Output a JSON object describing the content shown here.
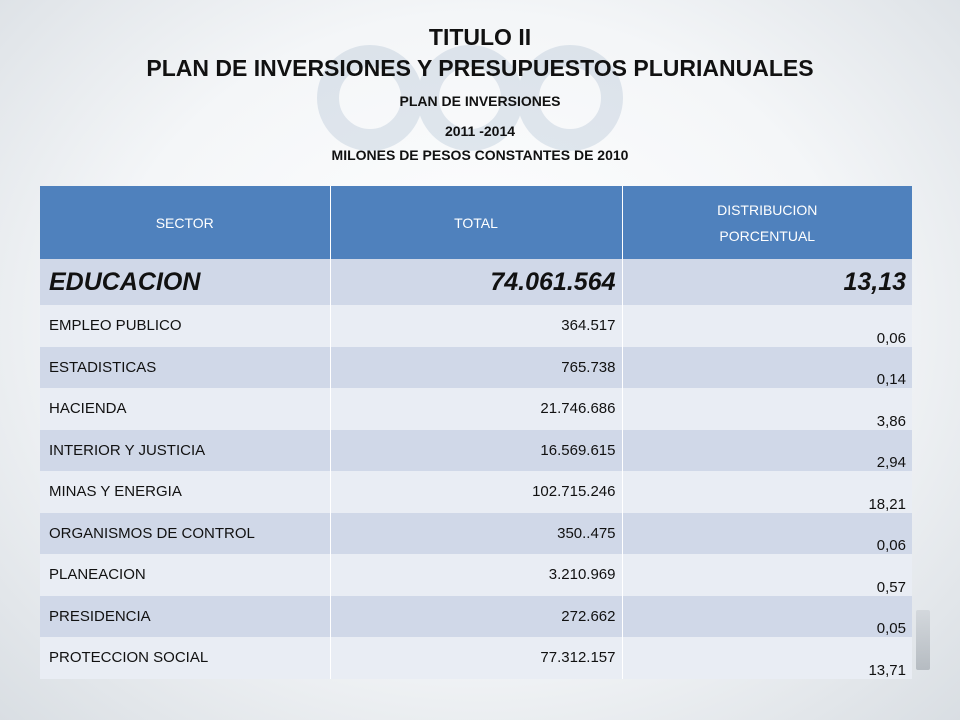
{
  "title": {
    "line1": "TITULO II",
    "line2": "PLAN DE INVERSIONES Y PRESUPUESTOS PLURIANUALES",
    "line3": "PLAN DE INVERSIONES",
    "line4": "2011 -2014",
    "line5": "MILONES DE PESOS CONSTANTES DE 2010"
  },
  "table": {
    "headers": {
      "sector": "SECTOR",
      "total": "TOTAL",
      "distribucion_line1": "DISTRIBUCION",
      "distribucion_line2": "PORCENTUAL"
    },
    "rows": [
      {
        "sector": "EDUCACION",
        "total": "74.061.564",
        "pct": "13,13"
      },
      {
        "sector": "EMPLEO PUBLICO",
        "total": "364.517",
        "pct": "0,06"
      },
      {
        "sector": "ESTADISTICAS",
        "total": "765.738",
        "pct": "0,14"
      },
      {
        "sector": "HACIENDA",
        "total": "21.746.686",
        "pct": "3,86"
      },
      {
        "sector": "INTERIOR Y JUSTICIA",
        "total": "16.569.615",
        "pct": "2,94"
      },
      {
        "sector": "MINAS Y ENERGIA",
        "total": "102.715.246",
        "pct": "18,21"
      },
      {
        "sector": "ORGANISMOS DE CONTROL",
        "total": "350..475",
        "pct": "0,06"
      },
      {
        "sector": "PLANEACION",
        "total": "3.210.969",
        "pct": "0,57"
      },
      {
        "sector": "PRESIDENCIA",
        "total": "272.662",
        "pct": "0,05"
      },
      {
        "sector": "PROTECCION SOCIAL",
        "total": "77.312.157",
        "pct": "13,71"
      }
    ]
  },
  "colors": {
    "header_bg": "#4f81bd",
    "row_dark": "#d0d8e8",
    "row_light": "#e9edf4"
  }
}
